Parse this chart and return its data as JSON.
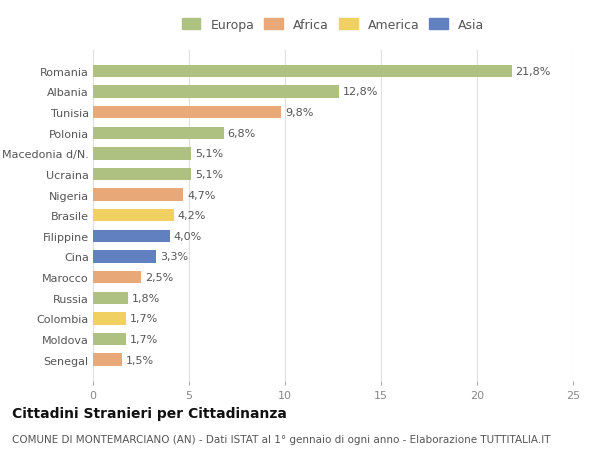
{
  "countries": [
    "Romania",
    "Albania",
    "Tunisia",
    "Polonia",
    "Macedonia d/N.",
    "Ucraina",
    "Nigeria",
    "Brasile",
    "Filippine",
    "Cina",
    "Marocco",
    "Russia",
    "Colombia",
    "Moldova",
    "Senegal"
  ],
  "values": [
    21.8,
    12.8,
    9.8,
    6.8,
    5.1,
    5.1,
    4.7,
    4.2,
    4.0,
    3.3,
    2.5,
    1.8,
    1.7,
    1.7,
    1.5
  ],
  "labels": [
    "21,8%",
    "12,8%",
    "9,8%",
    "6,8%",
    "5,1%",
    "5,1%",
    "4,7%",
    "4,2%",
    "4,0%",
    "3,3%",
    "2,5%",
    "1,8%",
    "1,7%",
    "1,7%",
    "1,5%"
  ],
  "continents": [
    "Europa",
    "Europa",
    "Africa",
    "Europa",
    "Europa",
    "Europa",
    "Africa",
    "America",
    "Asia",
    "Asia",
    "Africa",
    "Europa",
    "America",
    "Europa",
    "Africa"
  ],
  "continent_colors": {
    "Europa": "#aec180",
    "Africa": "#e8a878",
    "America": "#f0d060",
    "Asia": "#6080c0"
  },
  "legend_order": [
    "Europa",
    "Africa",
    "America",
    "Asia"
  ],
  "xlim": [
    0,
    25
  ],
  "xticks": [
    0,
    5,
    10,
    15,
    20,
    25
  ],
  "title": "Cittadini Stranieri per Cittadinanza",
  "subtitle": "COMUNE DI MONTEMARCIANO (AN) - Dati ISTAT al 1° gennaio di ogni anno - Elaborazione TUTTITALIA.IT",
  "bg_color": "#ffffff",
  "bar_height": 0.6,
  "label_fontsize": 8,
  "title_fontsize": 10,
  "subtitle_fontsize": 7.5,
  "tick_fontsize": 8,
  "legend_fontsize": 9,
  "grid_color": "#e0e0e0"
}
